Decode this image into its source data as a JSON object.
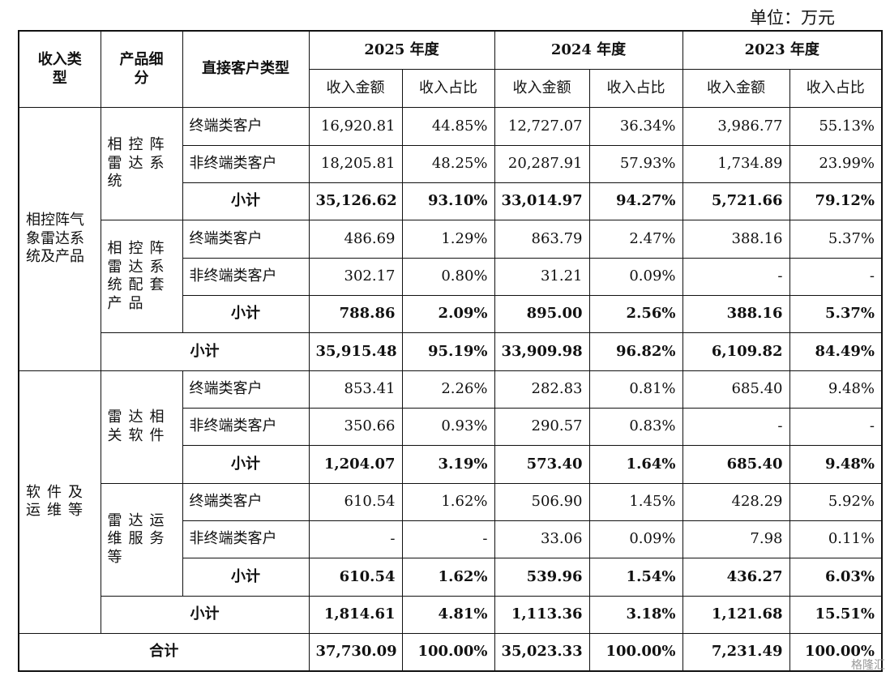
{
  "unit": "单位：万元",
  "headers": {
    "col1": "收入类型",
    "col2": "产品细分",
    "col3": "直接客户类型",
    "years": [
      "2025 年度",
      "2024 年度",
      "2023 年度"
    ],
    "amount": "收入金额",
    "ratio": "收入占比"
  },
  "section1": {
    "type": "相控阵气象雷达系统及产品",
    "group1": {
      "name": "相控阵雷达系统",
      "rows": [
        {
          "customer": "终端类客户",
          "v": [
            "16,920.81",
            "44.85%",
            "12,727.07",
            "36.34%",
            "3,986.77",
            "55.13%"
          ]
        },
        {
          "customer": "非终端类客户",
          "v": [
            "18,205.81",
            "48.25%",
            "20,287.91",
            "57.93%",
            "1,734.89",
            "23.99%"
          ]
        },
        {
          "customer": "小计",
          "v": [
            "35,126.62",
            "93.10%",
            "33,014.97",
            "94.27%",
            "5,721.66",
            "79.12%"
          ]
        }
      ]
    },
    "group2": {
      "name": "相控阵雷达系统配套产品",
      "rows": [
        {
          "customer": "终端类客户",
          "v": [
            "486.69",
            "1.29%",
            "863.79",
            "2.47%",
            "388.16",
            "5.37%"
          ]
        },
        {
          "customer": "非终端类客户",
          "v": [
            "302.17",
            "0.80%",
            "31.21",
            "0.09%",
            "-",
            "-"
          ]
        },
        {
          "customer": "小计",
          "v": [
            "788.86",
            "2.09%",
            "895.00",
            "2.56%",
            "388.16",
            "5.37%"
          ]
        }
      ]
    },
    "subtotal": {
      "label": "小计",
      "v": [
        "35,915.48",
        "95.19%",
        "33,909.98",
        "96.82%",
        "6,109.82",
        "84.49%"
      ]
    }
  },
  "section2": {
    "type": "软件及运维等",
    "group1": {
      "name": "雷达相关软件",
      "rows": [
        {
          "customer": "终端类客户",
          "v": [
            "853.41",
            "2.26%",
            "282.83",
            "0.81%",
            "685.40",
            "9.48%"
          ]
        },
        {
          "customer": "非终端类客户",
          "v": [
            "350.66",
            "0.93%",
            "290.57",
            "0.83%",
            "-",
            "-"
          ]
        },
        {
          "customer": "小计",
          "v": [
            "1,204.07",
            "3.19%",
            "573.40",
            "1.64%",
            "685.40",
            "9.48%"
          ]
        }
      ]
    },
    "group2": {
      "name": "雷达运维服务等",
      "rows": [
        {
          "customer": "终端类客户",
          "v": [
            "610.54",
            "1.62%",
            "506.90",
            "1.45%",
            "428.29",
            "5.92%"
          ]
        },
        {
          "customer": "非终端类客户",
          "v": [
            "-",
            "-",
            "33.06",
            "0.09%",
            "7.98",
            "0.11%"
          ]
        },
        {
          "customer": "小计",
          "v": [
            "610.54",
            "1.62%",
            "539.96",
            "1.54%",
            "436.27",
            "6.03%"
          ]
        }
      ]
    },
    "subtotal": {
      "label": "小计",
      "v": [
        "1,814.61",
        "4.81%",
        "1,113.36",
        "3.18%",
        "1,121.68",
        "15.51%"
      ]
    }
  },
  "total": {
    "label": "合计",
    "v": [
      "37,730.09",
      "100.00%",
      "35,023.33",
      "100.00%",
      "7,231.49",
      "100.00%"
    ]
  },
  "watermark": "格隆汇"
}
